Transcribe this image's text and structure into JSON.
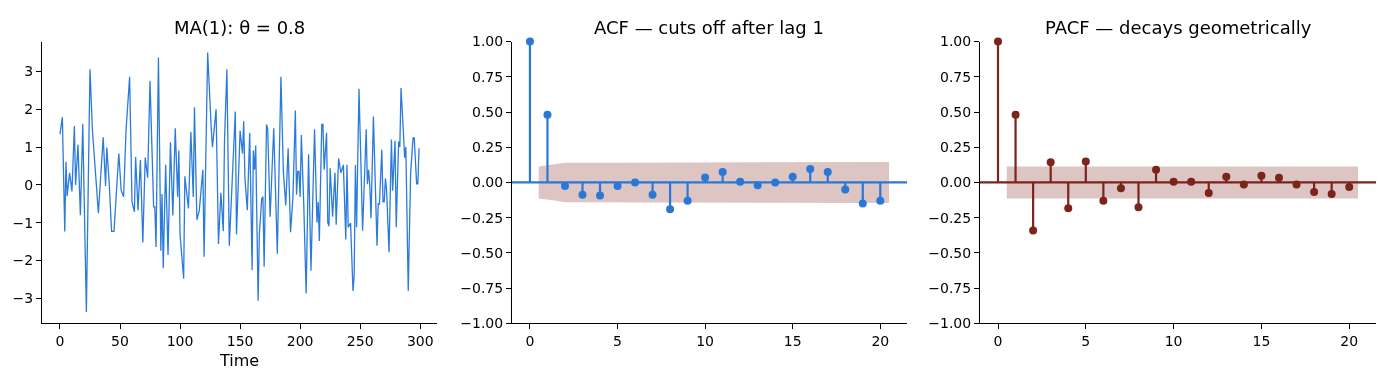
{
  "chart_data": [
    {
      "type": "line",
      "title": "MA(1): θ = 0.8",
      "xlabel": "Time",
      "color": "#2b7bdc",
      "line_style": "solid",
      "marker": "none",
      "x": [
        0,
        2,
        4,
        5,
        6,
        8,
        10,
        12,
        13,
        15,
        17,
        19,
        22,
        25,
        27,
        32,
        36,
        38,
        39,
        41,
        43,
        45,
        49,
        51,
        53,
        55,
        58,
        60,
        62,
        63,
        65,
        67,
        69,
        71,
        73,
        75,
        78,
        79,
        80,
        82,
        84,
        85,
        86,
        88,
        90,
        92,
        94,
        96,
        98,
        99,
        100,
        103,
        104,
        107,
        109,
        111,
        112,
        114,
        116,
        119,
        120,
        123,
        126,
        127,
        130,
        132,
        134,
        136,
        137,
        139,
        141,
        146,
        147,
        150,
        152,
        153,
        154,
        156,
        158,
        160,
        161,
        162,
        163,
        165,
        166,
        168,
        169,
        170,
        172,
        173,
        175,
        178,
        181,
        184,
        186,
        188,
        190,
        192,
        194,
        196,
        197,
        198,
        199,
        200,
        201,
        203,
        205,
        207,
        209,
        212,
        214,
        215,
        216,
        218,
        219,
        220,
        222,
        223,
        224,
        225,
        227,
        229,
        230,
        232,
        234,
        236,
        238,
        239,
        240,
        242,
        244,
        245,
        246,
        247,
        249,
        252,
        255,
        256,
        257,
        258,
        259,
        261,
        264,
        265,
        266,
        268,
        269,
        270,
        271,
        272,
        274,
        276,
        277,
        279,
        280,
        282,
        283,
        284,
        286,
        287,
        288,
        290,
        292,
        294,
        295,
        297,
        298,
        299
      ],
      "values": [
        1.34,
        1.79,
        -1.23,
        0.61,
        -0.3,
        0.32,
        -0.17,
        1.56,
        0,
        1.06,
        -0.8,
        1.61,
        -3.36,
        3.06,
        1.47,
        -0.75,
        1.26,
        -0.03,
        0.99,
        0.06,
        -1.23,
        -1.23,
        0.83,
        -0.15,
        -0.31,
        1.43,
        2.86,
        -0.45,
        -0.71,
        0.74,
        -0.67,
        0.66,
        -1.52,
        0.72,
        0.19,
        2.75,
        -0.58,
        -0.58,
        -1.64,
        3.37,
        -1.74,
        -0.24,
        -2.2,
        0.53,
        -1.85,
        1.13,
        -0.81,
        1.5,
        -0.31,
        0.91,
        -1.31,
        -2.48,
        0.23,
        -0.62,
        1.4,
        -0.32,
        2.05,
        -0.92,
        -0.68,
        0.4,
        -1.9,
        3.5,
        1.47,
        1.0,
        2.0,
        -1.56,
        -0.21,
        -1.22,
        1.16,
        3.06,
        -1.61,
        1.94,
        -1.31,
        1.43,
        0.83,
        1.68,
        0.19,
        -0.67,
        1.38,
        -2.25,
        0.91,
        0.4,
        1.04,
        -3.06,
        -1.31,
        -0.37,
        -0.31,
        -2.16,
        1.6,
        1.47,
        -0.84,
        1.5,
        -1.82,
        2.86,
        0.36,
        -0.54,
        0.97,
        -1.25,
        -0.32,
        1.97,
        -0.26,
        0.36,
        0.36,
        -0.32,
        1.32,
        -0.5,
        -2.87,
        0.81,
        -2.27,
        1.47,
        -0.99,
        -0.45,
        -1.48,
        1.6,
        1.6,
        0.4,
        1.38,
        -0.99,
        -1.09,
        0.44,
        -0.84,
        0.32,
        -1.05,
        0.7,
        0.32,
        0.53,
        -1.44,
        0.53,
        -1.12,
        -1.01,
        -2.8,
        -2.38,
        0.53,
        -1.12,
        2.54,
        -1.21,
        1.47,
        0.02,
        0.4,
        -0.02,
        -0.88,
        1.81,
        -1.61,
        -0.5,
        -0.51,
        0.93,
        -0.45,
        -0.45,
        0.17,
        -0.15,
        -1.78,
        1.2,
        -0.15,
        1.17,
        -1.12,
        1.15,
        1.0,
        2.56,
        1.38,
        0.72,
        1.0,
        -2.8,
        0.32,
        1.24,
        1.24,
        0.03,
        0.03,
        0.97
      ],
      "xlim": [
        -14.95,
        313.95
      ],
      "ylim": [
        -3.66,
        3.79
      ],
      "xticks": [
        0,
        50,
        100,
        150,
        200,
        250,
        300
      ],
      "yticks": [
        {
          "value": -3,
          "label": "−3"
        },
        {
          "value": -2,
          "label": "−2"
        },
        {
          "value": -1,
          "label": "−1"
        },
        0,
        1,
        2,
        3
      ]
    },
    {
      "type": "lollipop",
      "title": "ACF — cuts off after lag 1",
      "marker": "circle",
      "x": [
        0,
        1,
        2,
        3,
        4,
        5,
        6,
        7,
        8,
        9,
        10,
        11,
        12,
        13,
        14,
        15,
        16,
        17,
        18,
        19,
        20
      ],
      "series": [
        {
          "color": "#2a78d6",
          "values": [
            1.0,
            0.48,
            -0.025,
            -0.088,
            -0.093,
            -0.025,
            0.0,
            -0.088,
            -0.19,
            -0.13,
            0.036,
            0.075,
            0.005,
            -0.02,
            0.0,
            0.04,
            0.095,
            0.075,
            -0.05,
            -0.15,
            -0.13
          ]
        },
        {
          "type": "line",
          "color": "#dcc5c2",
          "x": [
            0.5,
            1.5,
            2,
            5,
            10,
            15,
            20.5
          ],
          "values": [
            null,
            null,
            null,
            null,
            null,
            null,
            null
          ],
          "lower": [
            -0.113,
            -0.13,
            -0.14,
            -0.14,
            -0.142,
            -0.144,
            -0.145
          ],
          "upper": [
            0.113,
            0.13,
            0.14,
            0.14,
            0.142,
            0.144,
            0.145
          ]
        }
      ],
      "ref_lines": [
        {
          "axis": "y",
          "value": 0,
          "color": "#2a78d6"
        }
      ],
      "xlim": [
        -1.025,
        21.525
      ],
      "ylim": [
        -1,
        1
      ],
      "xticks": [
        0,
        5,
        10,
        15,
        20
      ],
      "yticks": [
        {
          "value": -1,
          "label": "−1.00"
        },
        {
          "value": -0.75,
          "label": "−0.75"
        },
        {
          "value": -0.5,
          "label": "−0.50"
        },
        {
          "value": -0.25,
          "label": "−0.25"
        },
        {
          "value": 0,
          "label": "0.00"
        },
        {
          "value": 0.25,
          "label": "0.25"
        },
        {
          "value": 0.5,
          "label": "0.50"
        },
        {
          "value": 0.75,
          "label": "0.75"
        },
        {
          "value": 1,
          "label": "1.00"
        }
      ]
    },
    {
      "type": "lollipop",
      "title": "PACF — decays geometrically",
      "marker": "circle",
      "x": [
        0,
        1,
        2,
        3,
        4,
        5,
        6,
        7,
        8,
        9,
        10,
        11,
        12,
        13,
        14,
        15,
        16,
        17,
        18,
        19,
        20
      ],
      "series": [
        {
          "color": "#7b241c",
          "values": [
            1.0,
            0.48,
            -0.34,
            0.143,
            -0.183,
            0.149,
            -0.129,
            -0.041,
            -0.176,
            0.09,
            0.005,
            0.005,
            -0.075,
            0.04,
            -0.014,
            0.048,
            0.034,
            -0.014,
            -0.068,
            -0.081,
            -0.032
          ]
        },
        {
          "type": "line",
          "color": "#dcc5c2",
          "x": [
            0.5,
            20.5
          ],
          "values": [
            null,
            null
          ],
          "lower": [
            -0.113,
            -0.113
          ],
          "upper": [
            0.113,
            0.113
          ]
        }
      ],
      "ref_lines": [
        {
          "axis": "y",
          "value": 0,
          "color": "#7b241c"
        }
      ],
      "xlim": [
        -1.025,
        21.525
      ],
      "ylim": [
        -1,
        1
      ],
      "xticks": [
        0,
        5,
        10,
        15,
        20
      ],
      "yticks": [
        {
          "value": -1,
          "label": "−1.00"
        },
        {
          "value": -0.75,
          "label": "−0.75"
        },
        {
          "value": -0.5,
          "label": "−0.50"
        },
        {
          "value": -0.25,
          "label": "−0.25"
        },
        {
          "value": 0,
          "label": "0.00"
        },
        {
          "value": 0.25,
          "label": "0.25"
        },
        {
          "value": 0.5,
          "label": "0.50"
        },
        {
          "value": 0.75,
          "label": "0.75"
        },
        {
          "value": 1,
          "label": "1.00"
        }
      ]
    }
  ]
}
